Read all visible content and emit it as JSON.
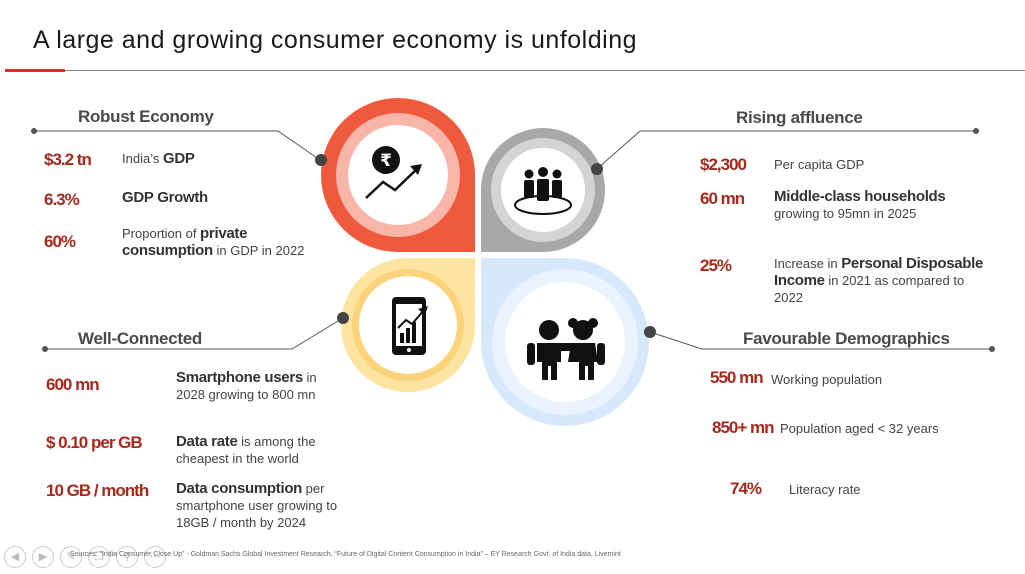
{
  "title": "A large and growing consumer economy is unfolding",
  "colors": {
    "accent": "#d9302a",
    "value_red": "#a52a1e",
    "petal_orange": "#f05a3c",
    "petal_gray": "#9e9e9e",
    "petal_yellow": "#fde4a0",
    "petal_blue": "#d6e8fb"
  },
  "robust": {
    "title": "Robust Economy",
    "icon": "rupee-growth-icon",
    "items": [
      {
        "value": "$3.2 tn",
        "pre": "India’s ",
        "bold": "GDP",
        "post": ""
      },
      {
        "value": "6.3%",
        "pre": "",
        "bold": "GDP Growth",
        "post": ""
      },
      {
        "value": "60%",
        "pre": "Proportion of ",
        "bold": "private consumption",
        "post": " in GDP in 2022"
      }
    ]
  },
  "affluence": {
    "title": "Rising affluence",
    "icon": "people-group-icon",
    "items": [
      {
        "value": "$2,300",
        "pre": "Per capita GDP",
        "bold": "",
        "post": ""
      },
      {
        "value": "60 mn",
        "pre": "",
        "bold": "Middle-class households",
        "post": " growing to 95mn in 2025"
      },
      {
        "value": "25%",
        "pre": "Increase in ",
        "bold": "Personal Disposable Income",
        "post": " in 2021 as compared to 2022"
      }
    ]
  },
  "connected": {
    "title": "Well-Connected",
    "icon": "smartphone-chart-icon",
    "items": [
      {
        "value": "600 mn",
        "pre": "",
        "bold": "Smartphone users",
        "post": " in 2028 growing to 800 mn"
      },
      {
        "value": "$ 0.10 per GB",
        "pre": "",
        "bold": "Data rate",
        "post": " is among the cheapest in the world"
      },
      {
        "value": "10 GB / month",
        "pre": "",
        "bold": "Data consumption",
        "post": " per smartphone user growing to 18GB / month by 2024"
      }
    ]
  },
  "demographics": {
    "title": "Favourable Demographics",
    "icon": "children-icon",
    "items": [
      {
        "value": "550 mn",
        "pre": "Working population",
        "bold": "",
        "post": ""
      },
      {
        "value": "850+ mn",
        "pre": "Population aged < 32 years",
        "bold": "",
        "post": ""
      },
      {
        "value": "74%",
        "pre": "Literacy rate",
        "bold": "",
        "post": ""
      }
    ]
  },
  "sources": "Sources: “India Consumer Close Up” - Goldman Sachs Global Investment Research, “Future of Digital Content Consumption in India” – EY Research Govt. of India data, Livemint",
  "nav_icons": [
    "prev-icon",
    "next-icon",
    "edit-icon",
    "copy-icon",
    "zoom-icon",
    "more-icon"
  ]
}
